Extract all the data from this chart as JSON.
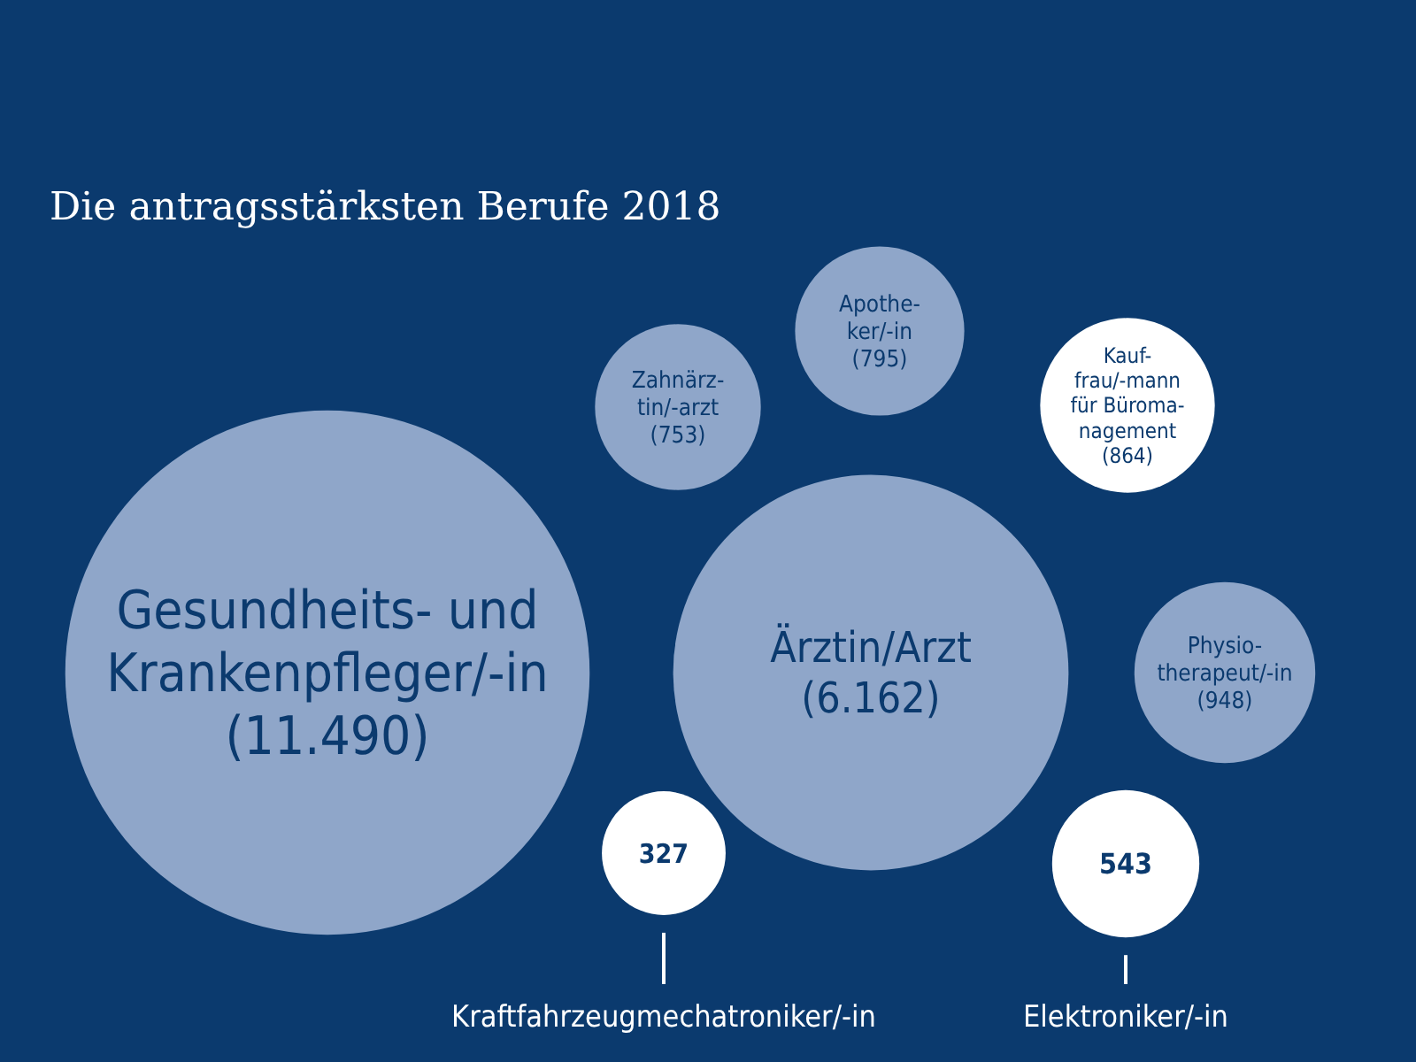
{
  "chart_data": {
    "type": "other",
    "title": "Die antragsstärksten Berufe 2018",
    "categories": [
      "Gesundheits- und\nKrankenpfleger/-in",
      "Ärztin/Arzt",
      "Zahnärz-\ntin/-arzt",
      "Apothe-\nker/-in",
      "Kauf-\nfrau/-mann\nfür Büroma-\nnagement",
      "Physio-\ntherapeut/-in",
      "Kraftfahrzeugmechatroniker/-in",
      "Elektroniker/-in"
    ],
    "values": [
      11490,
      6162,
      753,
      795,
      864,
      948,
      327,
      543
    ],
    "value_labels": [
      "(11.490)",
      "(6.162)",
      "(753)",
      "(795)",
      "(864)",
      "(948)",
      "327",
      "543"
    ],
    "colors": [
      "#8fa6c9",
      "#8fa6c9",
      "#8fa6c9",
      "#8fa6c9",
      "#ffffff",
      "#8fa6c9",
      "#ffffff",
      "#ffffff"
    ]
  }
}
